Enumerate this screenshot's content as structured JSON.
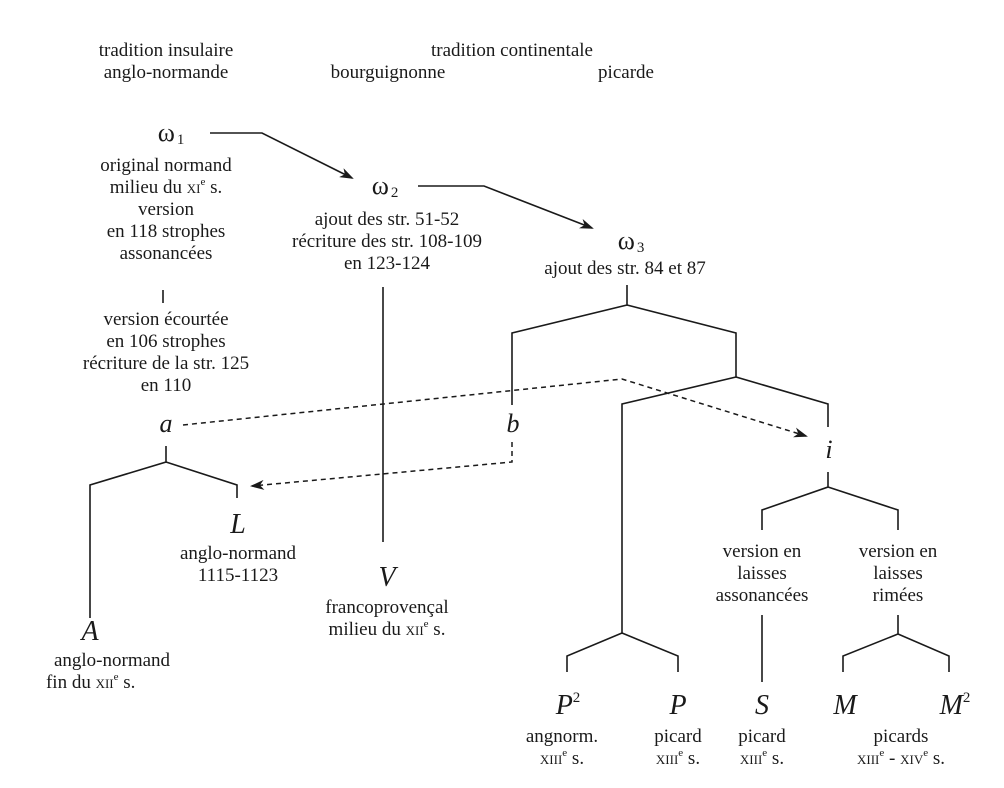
{
  "headers": {
    "insular_line1": "tradition insulaire",
    "insular_line2": "anglo-normande",
    "continental": "tradition continentale",
    "burgundian": "bourguignonne",
    "picard": "picarde"
  },
  "omega1": {
    "symbol": "ω",
    "index": "1",
    "notes": [
      "original normand",
      "milieu du"
    ],
    "century": "xi",
    "century_sup": "e",
    "century_suffix": " s.",
    "notes_after": [
      "version",
      "en 118 strophes",
      "assonancées"
    ],
    "separator": "|",
    "notes_short": [
      "version écourtée",
      "en 106 strophes",
      "récriture de la str. 125",
      "en 110"
    ]
  },
  "omega2": {
    "symbol": "ω",
    "index": "2",
    "notes": [
      "ajout des str. 51-52",
      "récriture des str. 108-109",
      "en 123-124"
    ]
  },
  "omega3": {
    "symbol": "ω",
    "index": "3",
    "notes": [
      "ajout des str. 84 et 87"
    ]
  },
  "nodes": {
    "a": "a",
    "b": "b",
    "i": "i",
    "L": {
      "siglum": "L",
      "lines": [
        "anglo-normand",
        "1115-1123"
      ]
    },
    "V": {
      "siglum": "V",
      "line1": "francoprovençal",
      "line2_prefix": "milieu du ",
      "century": "xii",
      "sup": "e",
      "suffix": " s."
    },
    "A": {
      "siglum": "A",
      "line1": "anglo-normand",
      "line2_prefix": "fin du ",
      "century": "xii",
      "sup": "e",
      "suffix": " s."
    },
    "P2": {
      "siglum": "P",
      "sup": "2",
      "line1": "angnorm.",
      "century": "xiii",
      "century_sup": "e",
      "suffix": " s."
    },
    "P": {
      "siglum": "P",
      "line1": "picard",
      "century": "xiii",
      "century_sup": "e",
      "suffix": " s."
    },
    "S": {
      "siglum": "S",
      "line1": "picard",
      "century": "xiii",
      "century_sup": "e",
      "suffix": " s."
    },
    "M": {
      "siglum": "M"
    },
    "M2": {
      "siglum": "M",
      "sup": "2"
    },
    "M_group": {
      "line1": "picards",
      "century_a": "xiii",
      "sup_a": "e",
      "dash": " - ",
      "century_b": "xiv",
      "sup_b": "e",
      "suffix": " s."
    },
    "assonance_version": [
      "version en",
      "laisses",
      "assonancées"
    ],
    "rhyme_version": [
      "version en",
      "laisses",
      "rimées"
    ]
  }
}
